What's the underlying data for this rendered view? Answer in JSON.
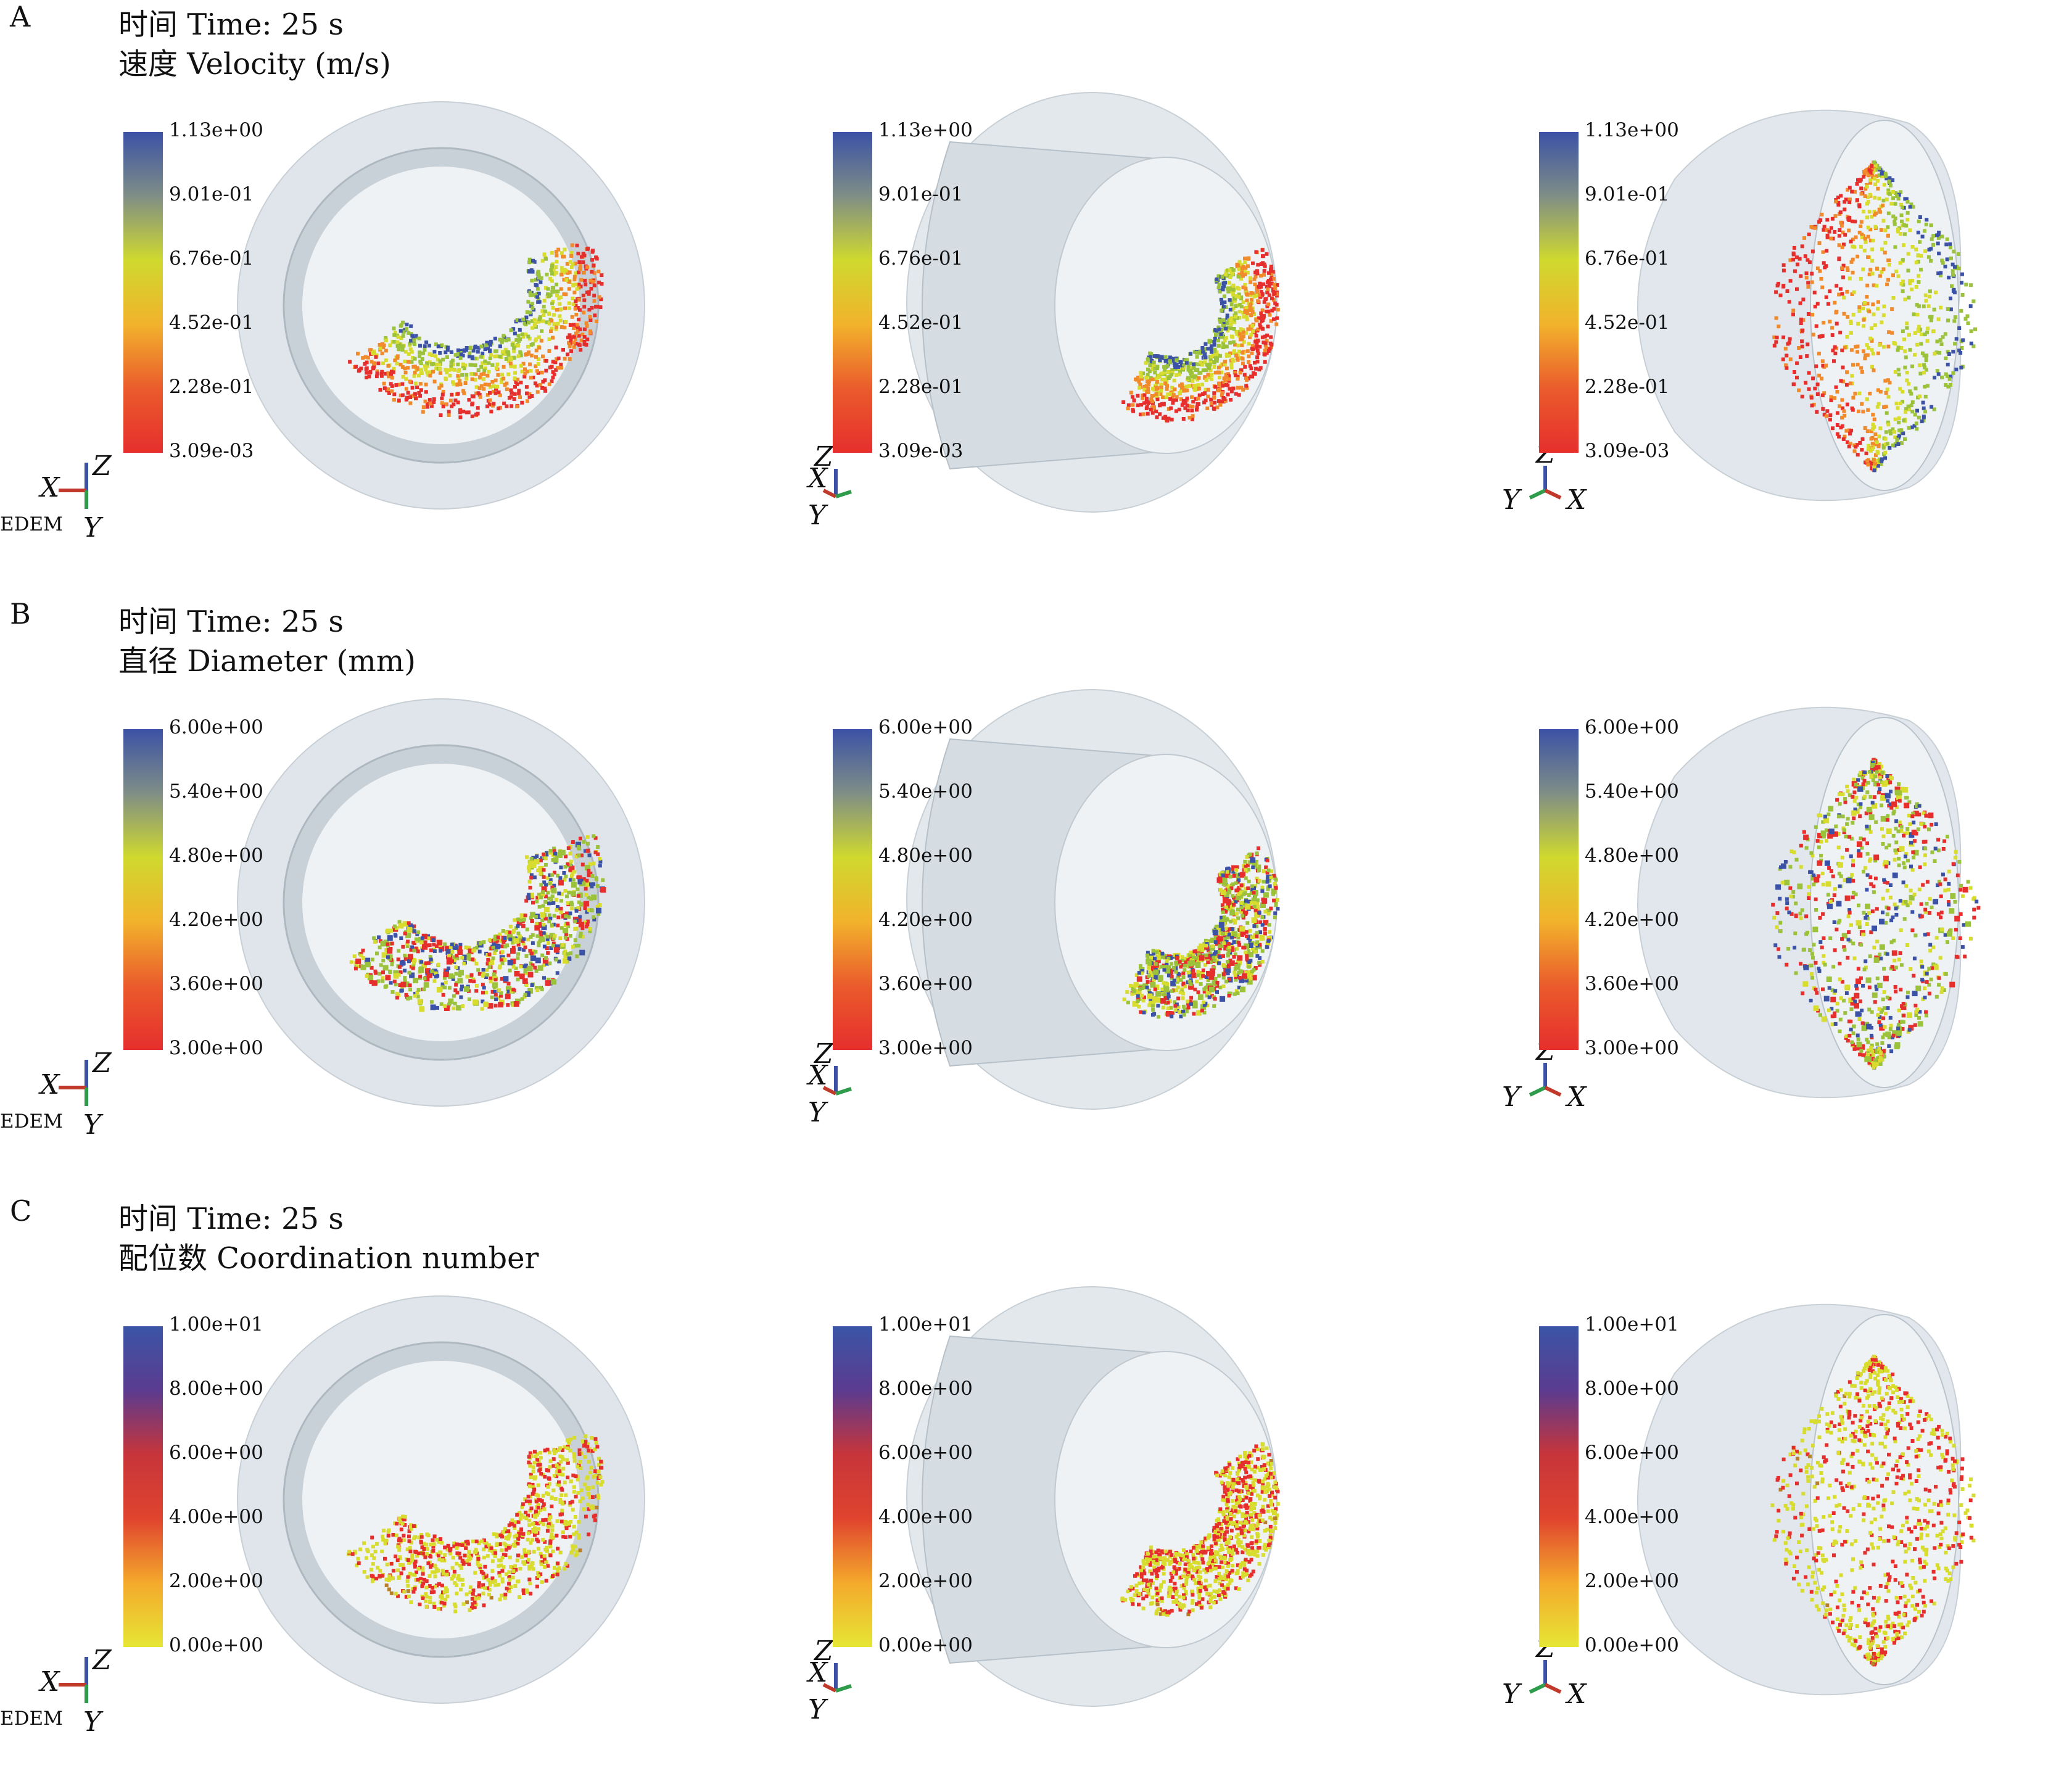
{
  "panels": [
    {
      "letter": "A",
      "time_label": "时间 Time: 25 s",
      "property_label": "速度 Velocity (m/s)",
      "scale_ticks": [
        "1.13e+00",
        "9.01e-01",
        "6.76e-01",
        "4.52e-01",
        "2.28e-01",
        "3.09e-03"
      ],
      "scale_colors": [
        "#3c52a6",
        "#7f8e86",
        "#cfd92e",
        "#f2b22c",
        "#ea5b2c",
        "#e62f2d"
      ]
    },
    {
      "letter": "B",
      "time_label": "时间 Time: 25 s",
      "property_label": "直径 Diameter (mm)",
      "scale_ticks": [
        "6.00e+00",
        "5.40e+00",
        "4.80e+00",
        "4.20e+00",
        "3.60e+00",
        "3.00e+00"
      ],
      "scale_colors": [
        "#3c52a6",
        "#7f8e86",
        "#cfd92e",
        "#f2b22c",
        "#ea5b2c",
        "#e62f2d"
      ]
    },
    {
      "letter": "C",
      "time_label": "时间 Time: 25 s",
      "property_label": "配位数 Coordination number",
      "scale_ticks": [
        "1.00e+01",
        "8.00e+00",
        "6.00e+00",
        "4.00e+00",
        "2.00e+00",
        "0.00e+00"
      ],
      "scale_colors": [
        "#3b55a6",
        "#5b3b8f",
        "#c7353a",
        "#e0442e",
        "#f4a92c",
        "#e6e634"
      ]
    }
  ],
  "edem_label": "EDEM",
  "axis_labels": {
    "x": "X",
    "y": "Y",
    "z": "Z"
  },
  "colors": {
    "red": "#e62f2d",
    "orange": "#f08a2b",
    "yellow": "#d8dc2e",
    "green": "#9bc23a",
    "blue": "#3c52a6",
    "drum": "#d6dde3"
  }
}
